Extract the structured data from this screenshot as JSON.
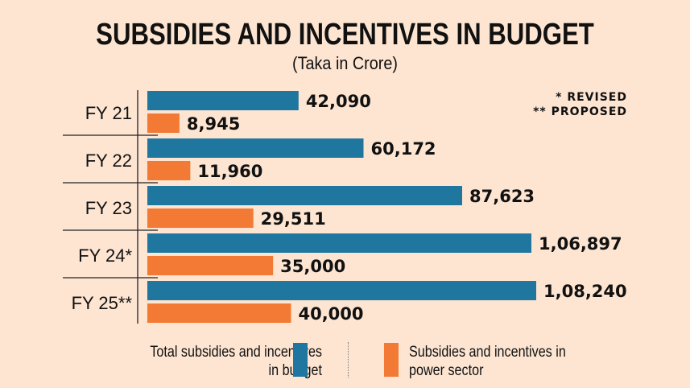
{
  "chart_data": {
    "type": "bar",
    "orientation": "horizontal",
    "title": "SUBSIDIES AND INCENTIVES IN BUDGET",
    "subtitle": "(Taka in Crore)",
    "notes": [
      "* REVISED",
      "** PROPOSED"
    ],
    "categories": [
      "FY 21",
      "FY 22",
      "FY 23",
      "FY 24*",
      "FY 25**"
    ],
    "series": [
      {
        "name": "Total subsidies and incentives in budget",
        "color": "#1f77a0",
        "values": [
          42090,
          60172,
          87623,
          106897,
          108240
        ],
        "labels": [
          "42,090",
          "60,172",
          "87,623",
          "1,06,897",
          "1,08,240"
        ]
      },
      {
        "name": "Subsidies and incentives in power sector",
        "color": "#f37a34",
        "values": [
          8945,
          11960,
          29511,
          35000,
          40000
        ],
        "labels": [
          "8,945",
          "11,960",
          "29,511",
          "35,000",
          "40,000"
        ]
      }
    ],
    "legend": {
      "placement": "bottom",
      "left": [
        "Total subsidies and incentives",
        "in budget"
      ],
      "right": [
        "Subsidies and incentives in",
        "power sector"
      ]
    },
    "grid": false,
    "background": "#fde5d2"
  }
}
